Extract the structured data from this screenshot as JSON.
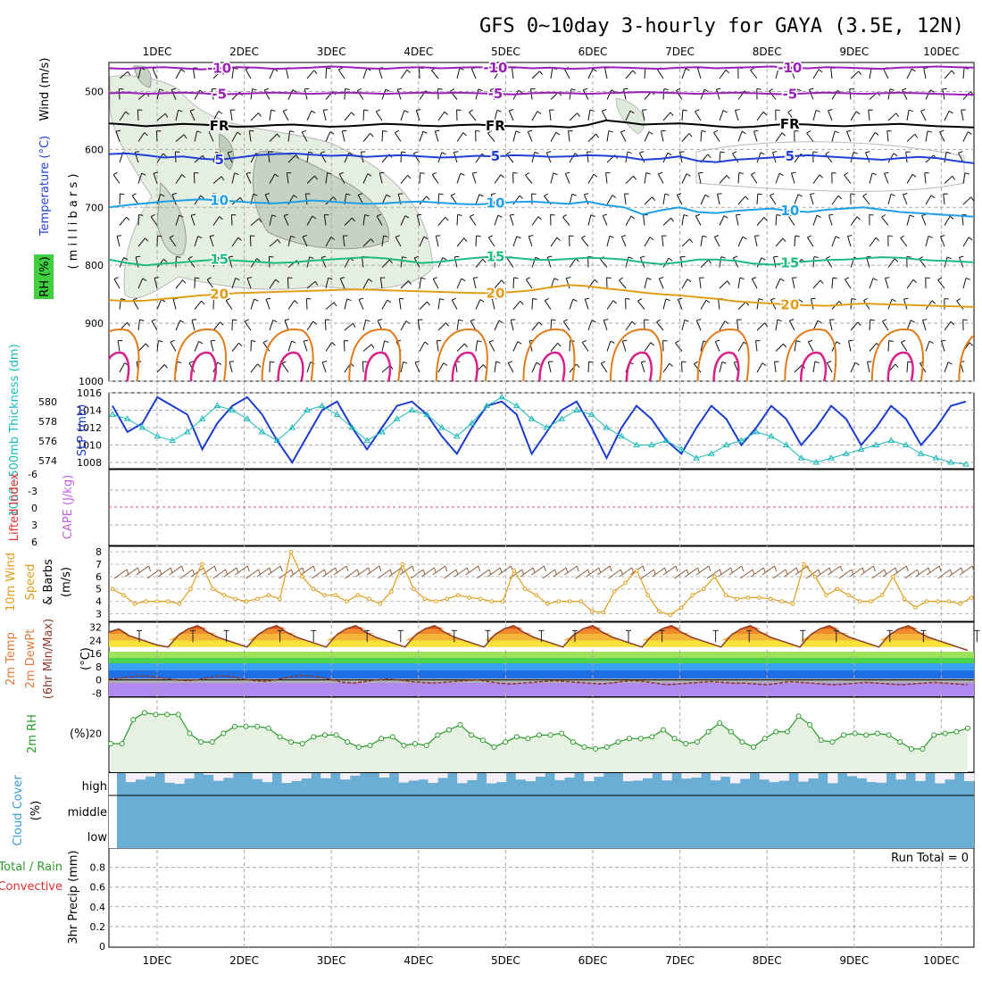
{
  "title": "GFS 0~10day 3-hourly for GAYA (3.5E, 12N)",
  "chart_data": [
    {
      "type": "contour",
      "panel": "upper",
      "left_labels": {
        "wind": "Wind (m/s)",
        "temperature": "Temperature (°C)",
        "rh": "RH (%)",
        "pressure": "( m i l l i b a r s )"
      },
      "pressure_ticks": [
        "500",
        "600",
        "700",
        "800",
        "900",
        "1000"
      ],
      "ylim": [
        1000,
        450
      ],
      "temperature_contours": [
        {
          "label": "-10",
          "color": "#9a1fb8",
          "p": [
            460,
            461,
            459,
            458,
            460,
            462,
            460,
            458,
            459,
            461,
            460,
            459,
            457,
            458,
            460,
            461,
            459,
            458,
            460,
            459,
            458,
            459,
            458,
            460,
            459,
            461,
            460,
            458,
            459,
            460,
            461,
            459,
            458,
            460,
            459,
            458,
            457,
            459,
            460,
            458,
            459,
            460,
            461,
            459,
            458,
            457,
            458,
            459
          ]
        },
        {
          "label": "-5",
          "color": "#9a1fb8",
          "p": [
            503,
            502,
            504,
            503,
            502,
            503,
            505,
            504,
            503,
            502,
            503,
            504,
            503,
            502,
            503,
            504,
            503,
            502,
            503,
            502,
            503,
            504,
            505,
            503,
            502,
            503,
            504,
            503,
            502,
            501,
            502,
            503,
            504,
            503,
            502,
            503,
            504,
            505,
            503,
            502,
            503,
            504,
            503,
            502,
            503,
            504,
            505,
            506
          ]
        },
        {
          "label": "FR",
          "color": "#000000",
          "p": [
            555,
            557,
            560,
            558,
            556,
            557,
            559,
            561,
            560,
            558,
            557,
            559,
            561,
            560,
            558,
            556,
            557,
            559,
            560,
            558,
            557,
            559,
            560,
            561,
            560,
            562,
            558,
            550,
            553,
            557,
            556,
            555,
            557,
            560,
            562,
            561,
            558,
            556,
            557,
            559,
            560,
            558,
            557,
            556,
            558,
            560,
            561,
            562
          ]
        },
        {
          "label": "5",
          "color": "#1f3fd8",
          "p": [
            608,
            607,
            610,
            614,
            612,
            616,
            618,
            614,
            610,
            608,
            607,
            609,
            611,
            610,
            613,
            611,
            610,
            612,
            614,
            613,
            611,
            612,
            610,
            611,
            613,
            612,
            610,
            611,
            613,
            618,
            616,
            612,
            620,
            622,
            618,
            616,
            614,
            612,
            610,
            612,
            614,
            616,
            618,
            615,
            613,
            615,
            620,
            624
          ]
        },
        {
          "label": "10",
          "color": "#1ea0e8",
          "p": [
            700,
            696,
            693,
            690,
            688,
            686,
            688,
            690,
            692,
            693,
            691,
            688,
            690,
            692,
            694,
            693,
            691,
            690,
            692,
            694,
            695,
            693,
            691,
            690,
            692,
            694,
            690,
            696,
            700,
            712,
            705,
            700,
            708,
            710,
            706,
            704,
            702,
            706,
            708,
            704,
            702,
            700,
            704,
            708,
            710,
            712,
            714,
            716
          ]
        },
        {
          "label": "15",
          "color": "#1dbb7e",
          "p": [
            790,
            796,
            800,
            797,
            795,
            792,
            790,
            792,
            794,
            796,
            795,
            792,
            790,
            788,
            786,
            788,
            792,
            796,
            794,
            790,
            787,
            785,
            787,
            790,
            791,
            789,
            787,
            788,
            790,
            795,
            798,
            795,
            790,
            790,
            792,
            797,
            799,
            796,
            793,
            791,
            790,
            788,
            786,
            787,
            790,
            792,
            793,
            795
          ]
        },
        {
          "label": "20",
          "color": "#e09d1a",
          "p": [
            860,
            862,
            861,
            858,
            855,
            852,
            850,
            848,
            847,
            846,
            845,
            844,
            843,
            842,
            842,
            843,
            844,
            845,
            846,
            847,
            848,
            848,
            846,
            843,
            838,
            834,
            836,
            840,
            843,
            847,
            850,
            852,
            855,
            858,
            862,
            864,
            866,
            868,
            869,
            870,
            868,
            866,
            867,
            868,
            869,
            870,
            871,
            872
          ]
        }
      ]
    },
    {
      "type": "line",
      "panel": "thickness-slp",
      "left_labels": {
        "thickness": "1000~500mb Thickness (dm)",
        "slp": "SLP (mb)"
      },
      "y_left_ticks": [
        "574",
        "576",
        "578",
        "580"
      ],
      "y_right_ticks": [
        "1008",
        "1010",
        "1012",
        "1014",
        "1016"
      ],
      "series": [
        {
          "color": "#1a3ccc",
          "values": [
            1014.5,
            1011.5,
            1012.5,
            1015.5,
            1014.5,
            1013.5,
            1009.5,
            1012.5,
            1014.5,
            1015.5,
            1013.5,
            1010.5,
            1008,
            1011,
            1014,
            1015,
            1012,
            1009.5,
            1012,
            1014.5,
            1015,
            1013.5,
            1011,
            1009,
            1012,
            1014.5,
            1015,
            1013.5,
            1009,
            1011.5,
            1014,
            1015,
            1012,
            1008.5,
            1012,
            1014.5,
            1013,
            1010.5,
            1009,
            1012,
            1014.5,
            1013,
            1010,
            1012,
            1014.5,
            1013,
            1010,
            1012,
            1014.5,
            1013,
            1010,
            1012,
            1014.5,
            1013,
            1010,
            1012,
            1014.5,
            1015
          ]
        },
        {
          "color": "#1ab8b8",
          "values": [
            1013.5,
            1013,
            1012,
            1011,
            1010.5,
            1011.5,
            1013,
            1014.5,
            1014,
            1013,
            1011.5,
            1010.5,
            1012,
            1014,
            1014.5,
            1013.5,
            1012,
            1010.5,
            1011.5,
            1013,
            1014,
            1013.5,
            1012,
            1011,
            1012.5,
            1014.5,
            1015.5,
            1014.5,
            1013,
            1012,
            1013,
            1014,
            1013.5,
            1012,
            1011,
            1010,
            1010,
            1010.5,
            1009.5,
            1008.5,
            1009,
            1010,
            1010.5,
            1011.5,
            1011,
            1010,
            1008.5,
            1008,
            1008.5,
            1009,
            1009.5,
            1010,
            1010.5,
            1010,
            1009,
            1008.5,
            1008,
            1007.8
          ]
        }
      ]
    },
    {
      "type": "line",
      "panel": "stability",
      "left_labels": {
        "li": "Lifted Index",
        "cape": "CAPE (J/kg)"
      },
      "y_ticks": [
        "-6",
        "-3",
        "0",
        "3",
        "6"
      ],
      "series": []
    },
    {
      "type": "line",
      "panel": "wind10m",
      "left_labels": {
        "wind": "10m Wind",
        "speed": "Speed",
        "barbs": "& Barbs",
        "unit": "(m/s)"
      },
      "y_ticks": [
        "3",
        "4",
        "5",
        "6",
        "7",
        "8"
      ],
      "series": [
        {
          "color": "#e09d1a",
          "values": [
            5,
            4.5,
            3.8,
            4,
            4,
            4,
            3.8,
            5,
            7,
            5,
            4.5,
            4.2,
            4,
            4.2,
            4.5,
            4.2,
            8,
            6,
            5,
            4.5,
            4.5,
            4,
            4.5,
            4.2,
            3.8,
            4.8,
            7,
            5,
            4.2,
            4,
            4.2,
            4.5,
            4.3,
            4.2,
            4,
            4,
            6.5,
            5,
            4.5,
            3.8,
            4,
            4,
            4,
            3.2,
            3.1,
            4.8,
            5.5,
            6.5,
            4.5,
            3.2,
            2.9,
            3.5,
            4.5,
            5,
            6,
            4.5,
            4.2,
            4.3,
            4.3,
            4.2,
            4,
            3.8,
            7,
            6,
            4.5,
            5,
            4.5,
            4,
            4,
            4.5,
            6,
            4.2,
            3.5,
            4,
            4,
            4,
            3.8,
            4.3
          ]
        }
      ]
    },
    {
      "type": "area",
      "panel": "temperature2m",
      "left_labels": {
        "temp": "2m Temp",
        "dewpt": "2m DewPt",
        "minmax": "(6hr Min/Max)",
        "unit": "(°C)"
      },
      "y_ticks": [
        "-8",
        "0",
        "8",
        "16",
        "24",
        "32"
      ],
      "series": [
        {
          "name": "Temp",
          "color": "#8a3a2a",
          "values": [
            29,
            31,
            27,
            25,
            23,
            21,
            20,
            27,
            31,
            33,
            29,
            26,
            24,
            22,
            20,
            27,
            31,
            33,
            29,
            26,
            24,
            22,
            20,
            27,
            31,
            33,
            29,
            26,
            24,
            22,
            20,
            27,
            31,
            33,
            29,
            26,
            24,
            22,
            20,
            27,
            31,
            33,
            29,
            26,
            24,
            22,
            20,
            27,
            31,
            33,
            29,
            26,
            24,
            22,
            20,
            27,
            31,
            33,
            29,
            26,
            24,
            22,
            20,
            27,
            31,
            33,
            29,
            26,
            24,
            22,
            20,
            27,
            31,
            33,
            29,
            26,
            24,
            22,
            20,
            27,
            31,
            33,
            29,
            26,
            24,
            22,
            20,
            18
          ]
        },
        {
          "name": "DewPt",
          "color": "#8a3a2a",
          "values": [
            0.5,
            1,
            2,
            2.5,
            2,
            1,
            0,
            -0.5,
            0,
            1.5,
            2.5,
            2,
            0.5,
            -0.5,
            -1,
            0,
            1.5,
            2.5,
            2.5,
            1.5,
            0,
            -1.5,
            -2,
            -1,
            0,
            0.5,
            0,
            -1,
            -1.5,
            -2,
            -1.5,
            -1,
            -0.5,
            0,
            -1,
            -2,
            -2.5,
            -2,
            -1.5,
            -1,
            -0.5,
            -1,
            -1.5,
            -2,
            -2.5,
            -2,
            -1,
            -0.5,
            -1,
            -2,
            -3,
            -2.5,
            -2,
            -1.5,
            -1,
            -1.5,
            -2,
            -2,
            -2.5,
            -3,
            -2,
            -1,
            -1.5,
            -2,
            -2.5,
            -3,
            -2.5,
            -2,
            -1.5,
            -2,
            -2.5,
            -3,
            -2.5,
            -2,
            -1.5,
            -2,
            -2.5,
            -3
          ]
        }
      ]
    },
    {
      "type": "line",
      "panel": "rh2m",
      "left_labels": {
        "rh": "2m RH",
        "unit": "(%)"
      },
      "y_ticks": [
        "20"
      ],
      "series": [
        {
          "color": "#2a9a2a",
          "values": [
            14,
            14,
            28,
            32,
            31,
            31,
            31,
            20,
            15,
            15,
            20,
            24,
            24,
            24,
            23,
            18,
            15,
            14,
            18,
            19,
            19,
            15,
            12,
            13,
            17,
            18,
            13,
            14,
            13,
            19,
            22,
            25,
            19,
            16,
            12,
            15,
            18,
            17,
            19,
            19,
            20,
            15,
            12,
            11,
            12,
            15,
            17,
            17,
            18,
            22,
            17,
            14,
            15,
            21,
            26,
            21,
            15,
            12,
            17,
            21,
            21,
            30,
            25,
            16,
            15,
            19,
            20,
            19,
            20,
            19,
            15,
            11,
            11,
            19,
            20,
            21,
            23
          ]
        }
      ]
    },
    {
      "type": "bar",
      "panel": "cloud-cover",
      "left_labels": {
        "cloud": "Cloud Cover",
        "unit": "(%)"
      },
      "y_ticks": [
        "high",
        "middle",
        "low"
      ],
      "series": [
        {
          "name": "high",
          "values": [
            100,
            58,
            70,
            84,
            100,
            55,
            50,
            74,
            100,
            92,
            64,
            78,
            100,
            100,
            72,
            58,
            100,
            54,
            63,
            75,
            98,
            76,
            100,
            70,
            88,
            100,
            100,
            79,
            100,
            56,
            65,
            70,
            54,
            77,
            100,
            53,
            67,
            100,
            52,
            58,
            100,
            70,
            62,
            83,
            100,
            67,
            79,
            100,
            62,
            83,
            100,
            100,
            62,
            65,
            76,
            100,
            66,
            100,
            74,
            79,
            100,
            66,
            83,
            52,
            73,
            100,
            70,
            58,
            64,
            100,
            60,
            75,
            100,
            53,
            100,
            86,
            76,
            58,
            55,
            100,
            70,
            100,
            63,
            100,
            52,
            70,
            100,
            62
          ]
        }
      ]
    },
    {
      "type": "bar",
      "panel": "precip",
      "left_labels": {
        "total": "Total / Rain",
        "convective": "Convective",
        "unit": "3hr Precip (mm)"
      },
      "y_ticks": [
        "0",
        "0.2",
        "0.4",
        "0.6",
        "0.8"
      ],
      "run_total": "Run Total = 0",
      "series": []
    }
  ],
  "x_axis": {
    "ticks": [
      "1DEC",
      "2DEC",
      "3DEC",
      "4DEC",
      "5DEC",
      "6DEC",
      "7DEC",
      "8DEC",
      "9DEC",
      "10DEC"
    ]
  }
}
